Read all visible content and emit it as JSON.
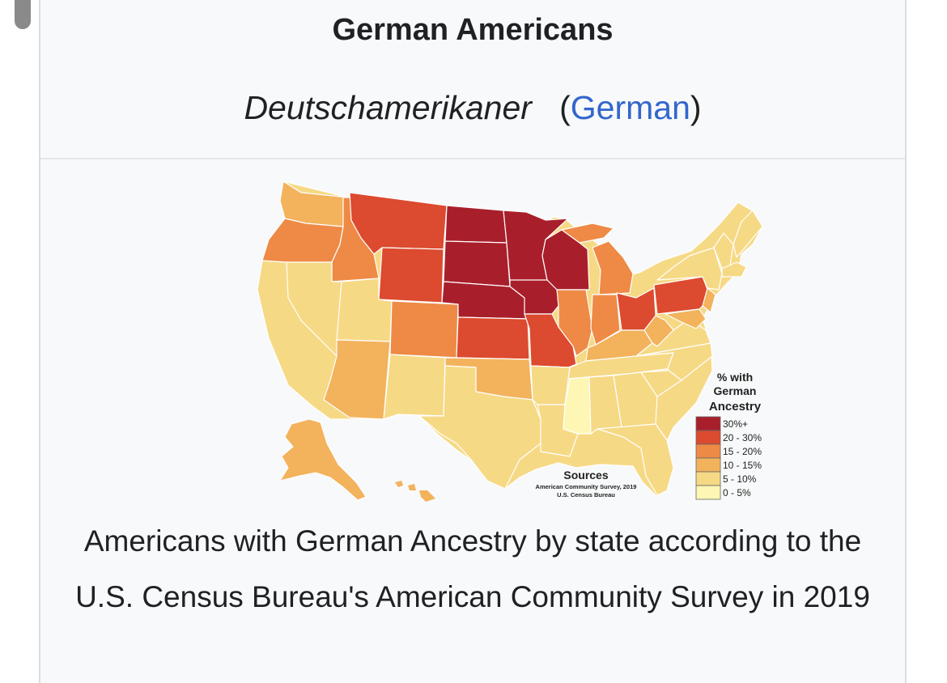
{
  "infobox": {
    "title": "German Americans",
    "native_name": "Deutschamerikaner",
    "language_open": "(",
    "language_label": "German",
    "language_close": ")"
  },
  "map": {
    "legend": {
      "title_lines": [
        "% with",
        "German",
        "Ancestry"
      ],
      "bins": [
        {
          "label": "30%+",
          "color": "#a81f2b"
        },
        {
          "label": "20 - 30%",
          "color": "#dc4a2f"
        },
        {
          "label": "15 - 20%",
          "color": "#ee8a45"
        },
        {
          "label": "10 - 15%",
          "color": "#f3b25c"
        },
        {
          "label": "5 - 10%",
          "color": "#f6d985"
        },
        {
          "label": "0 - 5%",
          "color": "#fdf6b5"
        }
      ]
    },
    "sources": {
      "heading": "Sources",
      "line1": "American Community Survey, 2019",
      "line2": "U.S. Census Bureau"
    }
  },
  "caption": "Americans with German Ancestry by state according to the U.S. Census Bureau's American Community Survey in 2019"
}
